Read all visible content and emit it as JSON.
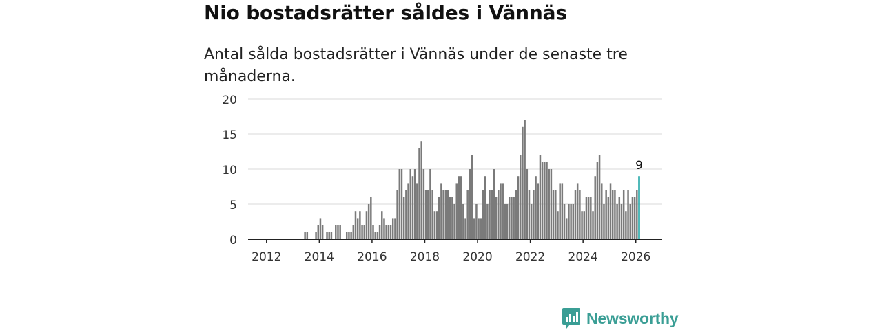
{
  "title": "Nio bostadsrätter såldes i Vännäs",
  "subtitle": "Antal sålda bostadsrätter i Vännäs under de senaste tre månaderna.",
  "brand": {
    "name": "Newsworthy",
    "color": "#3a9e95",
    "icon": "bar-chart-logo-icon"
  },
  "colors": {
    "bar": "#7a7a7a",
    "highlight": "#16a3a3",
    "grid": "#d9d9d9",
    "axis": "#222222"
  },
  "chart_data": {
    "type": "bar",
    "title": "Nio bostadsrätter såldes i Vännäs",
    "xlabel": "",
    "ylabel": "",
    "ylim": [
      0,
      20
    ],
    "yticks": [
      0,
      5,
      10,
      15,
      20
    ],
    "xlim": [
      2011.3,
      2027.0
    ],
    "xticks": [
      "2012",
      "2014",
      "2016",
      "2018",
      "2020",
      "2022",
      "2024",
      "2026"
    ],
    "grid": true,
    "start": {
      "year": 2011,
      "month": 7
    },
    "values": [
      0,
      0,
      0,
      0,
      0,
      0,
      0,
      0,
      0,
      0,
      0,
      0,
      0,
      0,
      0,
      0,
      0,
      0,
      0,
      0,
      0,
      0,
      0,
      1,
      1,
      0,
      0,
      0,
      1,
      2,
      3,
      2,
      0,
      1,
      1,
      1,
      0,
      2,
      2,
      2,
      0,
      0,
      1,
      1,
      1,
      2,
      4,
      3,
      4,
      2,
      2,
      4,
      5,
      6,
      2,
      1,
      1,
      2,
      4,
      3,
      2,
      2,
      2,
      3,
      3,
      7,
      10,
      10,
      6,
      7,
      8,
      10,
      9,
      10,
      8,
      13,
      14,
      10,
      7,
      7,
      10,
      7,
      4,
      4,
      6,
      8,
      7,
      7,
      7,
      6,
      6,
      5,
      8,
      9,
      9,
      5,
      3,
      7,
      10,
      12,
      3,
      5,
      3,
      3,
      7,
      9,
      5,
      7,
      7,
      10,
      6,
      7,
      8,
      8,
      5,
      5,
      6,
      6,
      6,
      7,
      9,
      12,
      16,
      17,
      10,
      7,
      5,
      7,
      9,
      8,
      12,
      11,
      11,
      11,
      10,
      10,
      7,
      7,
      4,
      8,
      8,
      5,
      3,
      5,
      5,
      5,
      7,
      8,
      7,
      4,
      4,
      6,
      6,
      6,
      4,
      9,
      11,
      12,
      8,
      5,
      7,
      6,
      8,
      7,
      7,
      5,
      6,
      5,
      7,
      4,
      7,
      5,
      6,
      6,
      7,
      9
    ],
    "highlight": {
      "label": "9",
      "value": 9
    }
  }
}
